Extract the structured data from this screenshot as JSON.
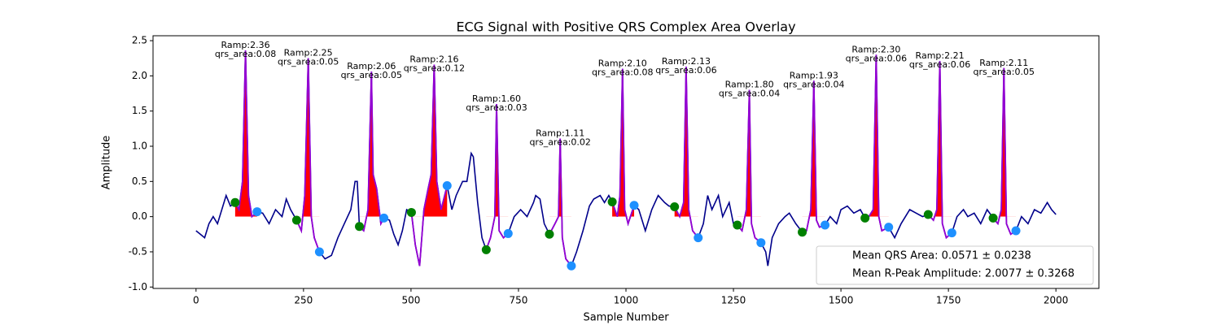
{
  "chart_data": {
    "type": "line",
    "title": "ECG Signal with Positive QRS Complex Area Overlay",
    "x_label": "Sample Number",
    "y_label": "Amplitude",
    "xlim": [
      -100,
      2100
    ],
    "ylim": [
      -1.02,
      2.57
    ],
    "xticks": [
      0,
      250,
      500,
      750,
      1000,
      1250,
      1500,
      1750,
      2000
    ],
    "yticks": [
      {
        "value": -1,
        "label": "-1.0"
      },
      -0.5,
      {
        "value": 0,
        "label": "0.0"
      },
      0.5,
      {
        "value": 1,
        "label": "1.0"
      },
      1.5,
      {
        "value": 2,
        "label": "2.0"
      },
      2.5
    ],
    "signal": {
      "color": "#00008b",
      "qrs_color": "#9400d3",
      "area_color": "#ff0000",
      "x": [
        0,
        10,
        20,
        30,
        40,
        50,
        60,
        70,
        80,
        91,
        100,
        108,
        115,
        122,
        130,
        142,
        155,
        170,
        185,
        200,
        210,
        220,
        234,
        245,
        253,
        261,
        268,
        275,
        287,
        300,
        315,
        330,
        345,
        360,
        370,
        375,
        380,
        390,
        400,
        408,
        412,
        420,
        430,
        437,
        450,
        460,
        470,
        480,
        490,
        501,
        510,
        520,
        530,
        540,
        547,
        554,
        560,
        570,
        584,
        595,
        605,
        620,
        630,
        640,
        645,
        655,
        665,
        675,
        685,
        695,
        699,
        705,
        715,
        726,
        740,
        755,
        770,
        785,
        790,
        800,
        810,
        822,
        835,
        843,
        847,
        852,
        860,
        873,
        885,
        900,
        915,
        925,
        940,
        950,
        960,
        968,
        980,
        986,
        992,
        997,
        1005,
        1019,
        1030,
        1045,
        1060,
        1075,
        1090,
        1100,
        1113,
        1125,
        1134,
        1140,
        1146,
        1155,
        1168,
        1180,
        1190,
        1200,
        1215,
        1225,
        1240,
        1250,
        1259,
        1270,
        1280,
        1287,
        1292,
        1300,
        1314,
        1325,
        1330,
        1340,
        1355,
        1370,
        1380,
        1395,
        1410,
        1420,
        1430,
        1437,
        1443,
        1450,
        1463,
        1475,
        1490,
        1500,
        1515,
        1530,
        1545,
        1556,
        1565,
        1575,
        1582,
        1588,
        1595,
        1611,
        1625,
        1640,
        1660,
        1675,
        1690,
        1703,
        1715,
        1723,
        1730,
        1736,
        1745,
        1758,
        1770,
        1785,
        1795,
        1810,
        1825,
        1840,
        1854,
        1865,
        1873,
        1879,
        1885,
        1895,
        1907,
        1920,
        1935,
        1950,
        1965,
        1980,
        1990,
        2000
      ],
      "values": [
        -0.2,
        -0.25,
        -0.3,
        -0.1,
        0.0,
        -0.1,
        0.1,
        0.3,
        0.15,
        0.2,
        0.1,
        0.5,
        2.36,
        0.3,
        0.0,
        0.07,
        0.05,
        -0.1,
        0.1,
        0.0,
        0.25,
        0.1,
        -0.05,
        -0.2,
        0.3,
        2.25,
        0.0,
        -0.3,
        -0.5,
        -0.6,
        -0.55,
        -0.3,
        -0.1,
        0.1,
        0.5,
        0.5,
        -0.14,
        -0.2,
        0.1,
        2.06,
        0.6,
        0.4,
        -0.1,
        -0.02,
        -0.05,
        -0.25,
        -0.4,
        -0.2,
        0.1,
        0.06,
        -0.4,
        -0.7,
        0.1,
        0.4,
        0.6,
        2.16,
        0.5,
        0.1,
        0.44,
        0.1,
        0.3,
        0.5,
        0.5,
        0.9,
        0.85,
        0.2,
        -0.3,
        -0.47,
        -0.3,
        0.0,
        1.6,
        -0.2,
        -0.3,
        -0.24,
        0.0,
        0.1,
        0.0,
        0.2,
        0.3,
        0.25,
        -0.1,
        -0.25,
        -0.1,
        0.0,
        1.11,
        -0.3,
        -0.6,
        -0.7,
        -0.5,
        -0.2,
        0.15,
        0.25,
        0.3,
        0.2,
        0.3,
        0.21,
        0.0,
        0.3,
        2.1,
        0.1,
        -0.1,
        0.16,
        0.1,
        -0.2,
        0.1,
        0.3,
        0.2,
        0.15,
        0.14,
        0.0,
        0.2,
        2.13,
        0.1,
        -0.2,
        -0.3,
        -0.1,
        0.3,
        0.1,
        0.3,
        0.0,
        0.2,
        -0.1,
        -0.12,
        -0.2,
        0.1,
        1.8,
        -0.1,
        -0.3,
        -0.37,
        -0.5,
        -0.7,
        -0.3,
        -0.1,
        0.0,
        0.05,
        -0.1,
        -0.22,
        -0.2,
        0.1,
        1.93,
        -0.05,
        -0.15,
        -0.12,
        0.0,
        -0.1,
        0.1,
        0.15,
        0.05,
        0.1,
        -0.02,
        0.0,
        0.1,
        2.3,
        0.0,
        -0.2,
        -0.15,
        -0.3,
        -0.1,
        0.1,
        0.05,
        0.0,
        0.03,
        -0.05,
        0.1,
        2.21,
        -0.1,
        -0.3,
        -0.23,
        0.0,
        0.1,
        0.0,
        0.05,
        -0.1,
        0.1,
        -0.02,
        -0.1,
        0.1,
        2.11,
        -0.1,
        -0.25,
        -0.2,
        0.0,
        -0.1,
        0.1,
        0.05,
        0.2,
        0.1,
        0.03
      ]
    },
    "onsets": {
      "color": "#008000",
      "x": [
        91,
        234,
        380,
        501,
        675,
        822,
        968,
        1113,
        1259,
        1410,
        1556,
        1703,
        1854
      ],
      "values": [
        0.2,
        -0.05,
        -0.14,
        0.06,
        -0.47,
        -0.25,
        0.21,
        0.14,
        -0.12,
        -0.22,
        -0.02,
        0.03,
        -0.02
      ]
    },
    "offsets": {
      "color": "#1e90ff",
      "x": [
        142,
        287,
        437,
        584,
        726,
        873,
        1019,
        1168,
        1314,
        1463,
        1611,
        1758,
        1907
      ],
      "values": [
        0.07,
        -0.5,
        -0.02,
        0.44,
        -0.24,
        -0.7,
        0.16,
        -0.3,
        -0.37,
        -0.12,
        -0.15,
        -0.23,
        -0.2
      ]
    },
    "r_peaks": {
      "x": [
        115,
        261,
        408,
        554,
        699,
        847,
        992,
        1140,
        1287,
        1437,
        1582,
        1730,
        1879
      ],
      "amplitude": [
        2.36,
        2.25,
        2.06,
        2.16,
        1.6,
        1.11,
        2.1,
        2.13,
        1.8,
        1.93,
        2.3,
        2.21,
        2.11
      ],
      "amplitude_labels": [
        "Ramp:2.36",
        "Ramp:2.25",
        "Ramp:2.06",
        "Ramp:2.16",
        "Ramp:1.60",
        "Ramp:1.11",
        "Ramp:2.10",
        "Ramp:2.13",
        "Ramp:1.80",
        "Ramp:1.93",
        "Ramp:2.30",
        "Ramp:2.21",
        "Ramp:2.11"
      ],
      "qrs_area": [
        0.08,
        0.05,
        0.05,
        0.12,
        0.03,
        0.02,
        0.08,
        0.06,
        0.04,
        0.04,
        0.06,
        0.06,
        0.05
      ],
      "qrs_area_labels": [
        "qrs_area:0.08",
        "qrs_area:0.05",
        "qrs_area:0.05",
        "qrs_area:0.12",
        "qrs_area:0.03",
        "qrs_area:0.02",
        "qrs_area:0.08",
        "qrs_area:0.06",
        "qrs_area:0.04",
        "qrs_area:0.04",
        "qrs_area:0.06",
        "qrs_area:0.06",
        "qrs_area:0.05"
      ]
    },
    "legend": {
      "loc": "lower right",
      "entries": [
        "Mean QRS Area: 0.0571 ± 0.0238",
        "Mean R-Peak Amplitude: 2.0077 ± 0.3268"
      ]
    }
  }
}
